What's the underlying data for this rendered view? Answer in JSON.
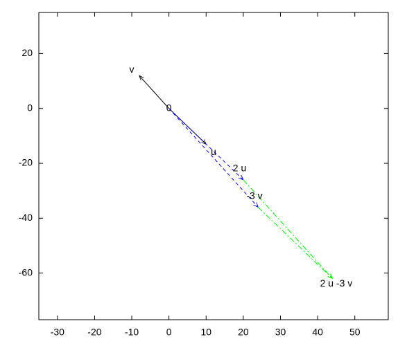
{
  "chart_data": {
    "type": "vector",
    "xlim": [
      -35,
      59
    ],
    "ylim": [
      -77,
      35
    ],
    "xticks": [
      -30,
      -20,
      -10,
      0,
      10,
      20,
      30,
      40,
      50
    ],
    "yticks": [
      -60,
      -40,
      -20,
      0,
      20
    ],
    "vectors": [
      {
        "x0": 0,
        "y0": 0,
        "x1": 10,
        "y1": -13,
        "color": "#000000",
        "style": "solid"
      },
      {
        "x0": 0,
        "y0": 0,
        "x1": -8,
        "y1": 12,
        "color": "#000000",
        "style": "solid"
      },
      {
        "x0": 0,
        "y0": 0,
        "x1": 20,
        "y1": -26,
        "color": "#0000ff",
        "style": "dashed"
      },
      {
        "x0": 0,
        "y0": 0,
        "x1": 24,
        "y1": -36,
        "color": "#0000ff",
        "style": "dashed"
      },
      {
        "x0": 20,
        "y0": -26,
        "x1": 44,
        "y1": -62,
        "color": "#00ff00",
        "style": "dashdot"
      },
      {
        "x0": 24,
        "y0": -36,
        "x1": 44,
        "y1": -62,
        "color": "#00ff00",
        "style": "dashdot"
      }
    ],
    "labels": [
      {
        "text": "v",
        "x": -10,
        "y": 14
      },
      {
        "text": "0",
        "x": 0,
        "y": 0
      },
      {
        "text": "u",
        "x": 12,
        "y": -16
      },
      {
        "text": "2 u",
        "x": 19,
        "y": -22
      },
      {
        "text": "-3 v",
        "x": 23,
        "y": -32
      },
      {
        "text": "2 u -3 v",
        "x": 45,
        "y": -64
      }
    ]
  }
}
